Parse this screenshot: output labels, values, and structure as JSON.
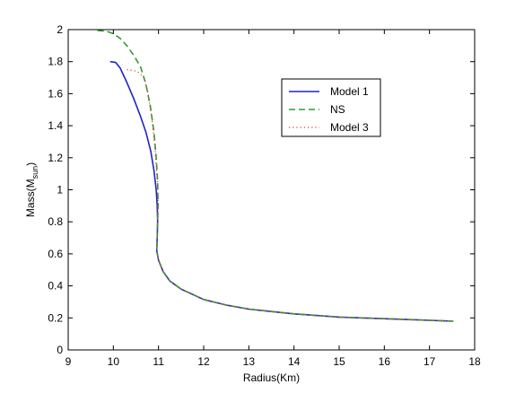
{
  "chart_data": {
    "type": "line",
    "xlabel": "Radius(Km)",
    "ylabel": "Mass(M",
    "ylabel_sub": "sun",
    "ylabel_close": ")",
    "xlim": [
      9,
      18
    ],
    "ylim": [
      0,
      2
    ],
    "x_ticks": [
      "9",
      "10",
      "11",
      "12",
      "13",
      "14",
      "15",
      "16",
      "17",
      "18"
    ],
    "y_ticks": [
      "0",
      "0.2",
      "0.4",
      "0.6",
      "0.8",
      "1",
      "1.2",
      "1.4",
      "1.6",
      "1.8",
      "2"
    ],
    "grid": false,
    "legend_position": "top-right-inside",
    "series": [
      {
        "name": "Model 1",
        "color": "#1f23c8",
        "style": "solid",
        "points": [
          [
            9.93,
            1.8
          ],
          [
            10.05,
            1.795
          ],
          [
            10.15,
            1.76
          ],
          [
            10.3,
            1.67
          ],
          [
            10.45,
            1.57
          ],
          [
            10.6,
            1.46
          ],
          [
            10.72,
            1.36
          ],
          [
            10.83,
            1.24
          ],
          [
            10.9,
            1.12
          ],
          [
            10.95,
            1.0
          ],
          [
            10.97,
            0.9
          ],
          [
            10.98,
            0.8
          ],
          [
            10.97,
            0.7
          ],
          [
            10.96,
            0.62
          ],
          [
            11.0,
            0.56
          ],
          [
            11.1,
            0.49
          ],
          [
            11.25,
            0.43
          ],
          [
            11.5,
            0.38
          ],
          [
            12.0,
            0.315
          ],
          [
            12.5,
            0.28
          ],
          [
            13.0,
            0.255
          ],
          [
            13.5,
            0.24
          ],
          [
            14.0,
            0.225
          ],
          [
            14.5,
            0.215
          ],
          [
            15.0,
            0.205
          ],
          [
            15.5,
            0.2
          ],
          [
            16.0,
            0.195
          ],
          [
            16.5,
            0.19
          ],
          [
            17.0,
            0.185
          ],
          [
            17.5,
            0.18
          ]
        ]
      },
      {
        "name": "NS",
        "color": "#2f9e2f",
        "style": "dashed",
        "points": [
          [
            9.65,
            1.995
          ],
          [
            9.85,
            1.99
          ],
          [
            10.0,
            1.975
          ],
          [
            10.15,
            1.945
          ],
          [
            10.3,
            1.9
          ],
          [
            10.45,
            1.84
          ],
          [
            10.6,
            1.77
          ],
          [
            10.72,
            1.66
          ],
          [
            10.82,
            1.52
          ],
          [
            10.9,
            1.36
          ],
          [
            10.95,
            1.2
          ],
          [
            10.98,
            1.05
          ],
          [
            10.99,
            0.9
          ],
          [
            10.98,
            0.8
          ],
          [
            10.97,
            0.7
          ],
          [
            10.96,
            0.62
          ],
          [
            11.0,
            0.56
          ],
          [
            11.1,
            0.49
          ],
          [
            11.25,
            0.43
          ],
          [
            11.5,
            0.38
          ],
          [
            12.0,
            0.315
          ],
          [
            12.5,
            0.28
          ],
          [
            13.0,
            0.255
          ],
          [
            13.5,
            0.24
          ],
          [
            14.0,
            0.225
          ],
          [
            14.5,
            0.215
          ],
          [
            15.0,
            0.205
          ],
          [
            15.5,
            0.2
          ],
          [
            16.0,
            0.195
          ],
          [
            16.5,
            0.19
          ],
          [
            17.0,
            0.185
          ],
          [
            17.55,
            0.18
          ]
        ]
      },
      {
        "name": "Model 3",
        "color": "#d43a3a",
        "style": "dotted",
        "points": [
          [
            10.3,
            1.75
          ],
          [
            10.45,
            1.745
          ],
          [
            10.58,
            1.73
          ],
          [
            10.68,
            1.7
          ],
          [
            10.77,
            1.6
          ],
          [
            10.85,
            1.45
          ],
          [
            10.91,
            1.3
          ],
          [
            10.95,
            1.15
          ],
          [
            10.98,
            1.02
          ],
          [
            10.99,
            0.9
          ],
          [
            10.98,
            0.8
          ],
          [
            10.97,
            0.7
          ],
          [
            10.96,
            0.62
          ],
          [
            11.0,
            0.56
          ],
          [
            11.1,
            0.49
          ],
          [
            11.25,
            0.43
          ],
          [
            11.5,
            0.38
          ],
          [
            12.0,
            0.315
          ],
          [
            12.5,
            0.28
          ],
          [
            13.0,
            0.255
          ],
          [
            13.5,
            0.24
          ],
          [
            14.0,
            0.225
          ],
          [
            14.5,
            0.215
          ],
          [
            15.0,
            0.205
          ],
          [
            15.5,
            0.2
          ],
          [
            16.0,
            0.195
          ],
          [
            16.5,
            0.19
          ],
          [
            17.0,
            0.185
          ],
          [
            17.5,
            0.18
          ]
        ]
      }
    ]
  }
}
